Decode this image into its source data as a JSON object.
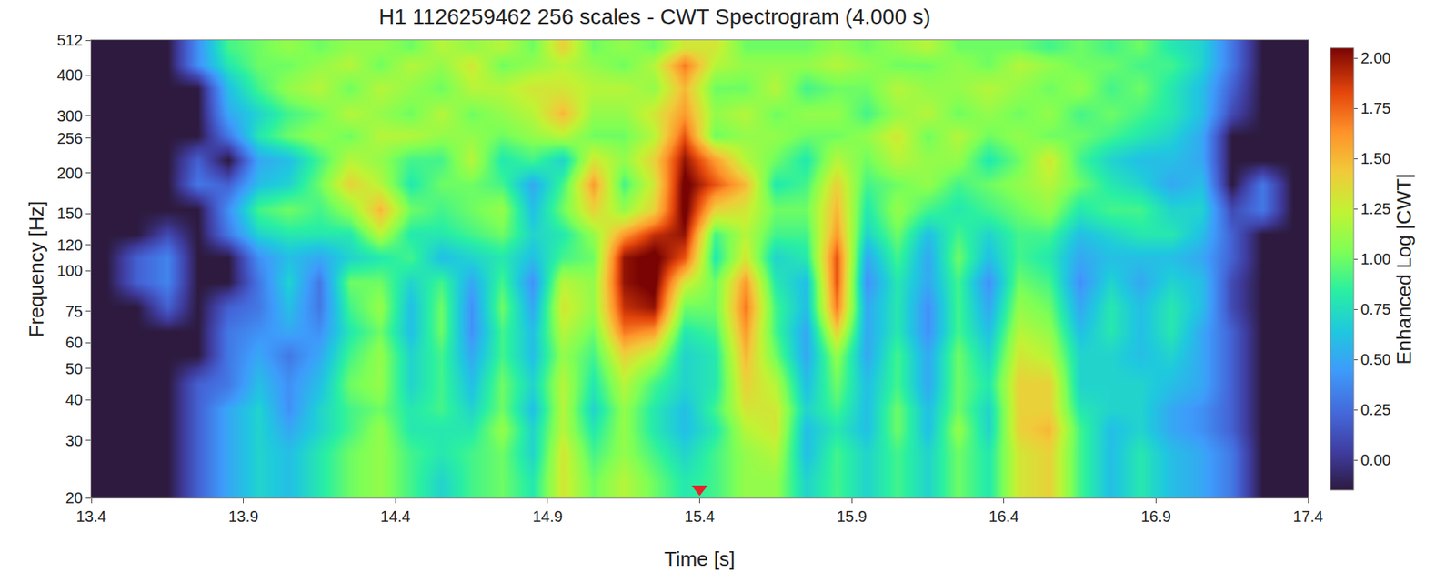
{
  "chart_data": {
    "type": "heatmap",
    "title": "H1 1126259462 256 scales - CWT Spectrogram (4.000 s)",
    "x_label": "Time [s]",
    "y_label": "Frequency [Hz]",
    "log": "y",
    "grid": false,
    "xlim": [
      13.4,
      17.4
    ],
    "xticks": [
      13.4,
      13.9,
      14.4,
      14.9,
      15.4,
      15.9,
      16.4,
      16.9,
      17.4
    ],
    "ylim": [
      20,
      512
    ],
    "yticks": [
      20,
      30,
      40,
      50,
      60,
      75,
      100,
      120,
      150,
      200,
      256,
      300,
      400,
      512
    ],
    "x": [
      13.4,
      13.5,
      13.6,
      13.7,
      13.8,
      13.9,
      14.0,
      14.1,
      14.2,
      14.3,
      14.4,
      14.5,
      14.6,
      14.7,
      14.8,
      14.9,
      15.0,
      15.1,
      15.2,
      15.3,
      15.4,
      15.5,
      15.6,
      15.7,
      15.8,
      15.9,
      16.0,
      16.1,
      16.2,
      16.3,
      16.4,
      16.5,
      16.6,
      16.7,
      16.8,
      16.9,
      17.0,
      17.1,
      17.2,
      17.3,
      17.4
    ],
    "y": [
      20,
      25,
      30,
      35,
      40,
      50,
      60,
      70,
      85,
      100,
      120,
      140,
      170,
      200,
      240,
      280,
      330,
      400,
      460,
      512
    ],
    "cells_by_time": [
      [
        -0.15,
        -0.15,
        -0.15,
        -0.15,
        -0.15,
        -0.15,
        -0.15,
        -0.15,
        -0.15,
        -0.15,
        -0.15,
        -0.15,
        -0.15,
        -0.15,
        -0.15,
        -0.15,
        -0.15,
        -0.15,
        -0.15
      ],
      [
        -0.15,
        -0.15,
        -0.15,
        -0.15,
        -0.15,
        -0.15,
        -0.15,
        -0.15,
        0.2,
        0.2,
        -0.15,
        -0.15,
        -0.15,
        -0.15,
        -0.15,
        -0.15,
        -0.15,
        -0.15,
        -0.15
      ],
      [
        -0.15,
        -0.15,
        -0.15,
        -0.15,
        -0.15,
        -0.15,
        -0.15,
        0.2,
        0.35,
        0.35,
        0.1,
        -0.15,
        -0.15,
        -0.15,
        -0.15,
        -0.15,
        -0.15,
        -0.15,
        -0.15
      ],
      [
        0.2,
        0.2,
        0.2,
        0.2,
        0.2,
        -0.15,
        -0.15,
        -0.15,
        -0.15,
        -0.15,
        -0.15,
        -0.15,
        0.3,
        0.2,
        -0.15,
        -0.15,
        -0.15,
        0.4,
        0.4
      ],
      [
        0.5,
        0.5,
        0.5,
        0.5,
        0.3,
        0.3,
        0.3,
        0.2,
        -0.15,
        -0.15,
        0.3,
        0.4,
        0.2,
        -0.15,
        0.3,
        0.5,
        0.6,
        0.8,
        0.9
      ],
      [
        0.7,
        0.7,
        0.7,
        0.7,
        0.6,
        0.5,
        0.4,
        0.3,
        0.3,
        0.4,
        0.7,
        0.9,
        0.6,
        0.5,
        0.8,
        0.7,
        0.9,
        1.0,
        1.0
      ],
      [
        0.6,
        0.6,
        0.5,
        0.4,
        0.4,
        0.3,
        0.5,
        0.6,
        0.7,
        0.6,
        0.8,
        1.0,
        0.7,
        0.6,
        1.0,
        0.9,
        1.1,
        1.0,
        1.1
      ],
      [
        0.8,
        0.8,
        0.7,
        0.7,
        0.6,
        0.5,
        0.4,
        0.3,
        0.3,
        0.5,
        0.8,
        0.9,
        1.0,
        0.9,
        1.1,
        1.0,
        1.2,
        1.1,
        1.0
      ],
      [
        1.0,
        1.0,
        0.9,
        0.9,
        1.0,
        0.9,
        0.8,
        0.9,
        1.0,
        0.7,
        0.8,
        1.1,
        1.4,
        1.2,
        1.0,
        1.2,
        1.0,
        1.2,
        1.1
      ],
      [
        1.1,
        1.1,
        1.1,
        1.0,
        1.1,
        1.1,
        1.0,
        1.1,
        1.0,
        0.8,
        1.2,
        1.5,
        1.2,
        1.1,
        1.2,
        1.1,
        1.2,
        1.0,
        1.1
      ],
      [
        0.9,
        0.9,
        0.8,
        0.8,
        0.7,
        0.7,
        0.6,
        0.6,
        0.7,
        0.9,
        0.8,
        1.0,
        0.8,
        0.9,
        1.2,
        1.0,
        1.1,
        1.2,
        1.0
      ],
      [
        0.7,
        0.8,
        0.8,
        0.9,
        0.9,
        0.9,
        1.0,
        1.0,
        0.9,
        0.6,
        0.8,
        0.9,
        1.0,
        0.9,
        1.1,
        1.2,
        1.0,
        1.1,
        1.2
      ],
      [
        0.9,
        0.9,
        0.8,
        0.7,
        0.6,
        0.5,
        0.4,
        0.4,
        0.5,
        0.7,
        0.9,
        1.0,
        1.0,
        1.2,
        1.1,
        1.0,
        1.2,
        1.3,
        1.1
      ],
      [
        1.0,
        1.0,
        1.1,
        1.0,
        1.0,
        0.9,
        0.9,
        1.0,
        0.9,
        0.8,
        1.0,
        1.1,
        0.9,
        0.8,
        1.0,
        1.1,
        1.2,
        1.0,
        1.2
      ],
      [
        0.8,
        0.7,
        0.7,
        0.6,
        0.7,
        0.6,
        0.6,
        0.5,
        0.4,
        0.6,
        0.7,
        0.6,
        0.5,
        0.9,
        1.1,
        1.2,
        1.3,
        1.1,
        1.0
      ],
      [
        1.3,
        1.3,
        1.2,
        1.2,
        1.2,
        1.1,
        1.2,
        1.3,
        1.2,
        0.9,
        0.8,
        1.0,
        0.9,
        0.7,
        1.2,
        1.5,
        1.3,
        1.2,
        1.4
      ],
      [
        1.0,
        0.9,
        0.8,
        0.7,
        0.8,
        0.9,
        1.0,
        1.1,
        1.1,
        1.0,
        1.1,
        1.4,
        1.6,
        1.3,
        1.0,
        1.1,
        1.2,
        1.1,
        1.0
      ],
      [
        1.2,
        1.1,
        1.1,
        1.1,
        1.2,
        1.4,
        1.7,
        1.9,
        2.0,
        2.0,
        1.6,
        1.1,
        0.9,
        1.1,
        1.0,
        1.1,
        1.2,
        1.0,
        1.1
      ],
      [
        1.0,
        0.9,
        0.8,
        0.8,
        0.9,
        1.2,
        1.6,
        2.0,
        2.1,
        2.1,
        1.9,
        1.4,
        1.3,
        1.4,
        1.2,
        1.3,
        1.1,
        1.2,
        1.0
      ],
      [
        0.8,
        0.7,
        0.6,
        0.6,
        0.7,
        0.7,
        0.8,
        1.0,
        1.3,
        1.8,
        2.0,
        2.1,
        2.1,
        2.0,
        1.8,
        1.6,
        1.5,
        1.7,
        1.3
      ],
      [
        0.9,
        0.9,
        0.8,
        0.9,
        0.8,
        0.8,
        0.9,
        1.0,
        1.0,
        0.8,
        0.9,
        1.4,
        1.8,
        1.6,
        1.0,
        1.1,
        1.0,
        1.2,
        1.3
      ],
      [
        1.1,
        1.1,
        1.2,
        1.3,
        1.4,
        1.5,
        1.6,
        1.7,
        1.6,
        1.3,
        1.2,
        1.3,
        1.5,
        1.2,
        1.1,
        1.2,
        1.0,
        1.1,
        1.0
      ],
      [
        1.1,
        1.2,
        1.3,
        1.3,
        1.2,
        1.0,
        0.9,
        0.9,
        0.8,
        0.7,
        0.9,
        1.0,
        0.8,
        1.0,
        1.1,
        1.0,
        1.2,
        1.1,
        1.0
      ],
      [
        0.7,
        0.6,
        0.6,
        0.7,
        0.6,
        0.5,
        0.5,
        0.6,
        0.6,
        0.8,
        0.9,
        1.0,
        0.9,
        0.8,
        1.0,
        1.1,
        0.9,
        1.1,
        1.0
      ],
      [
        0.9,
        0.9,
        0.8,
        0.9,
        1.0,
        1.1,
        1.4,
        1.7,
        1.8,
        1.8,
        1.6,
        1.5,
        1.4,
        1.2,
        1.0,
        1.1,
        1.0,
        1.2,
        1.1
      ],
      [
        0.7,
        0.7,
        0.6,
        0.6,
        0.6,
        0.5,
        0.5,
        0.5,
        0.4,
        0.5,
        0.7,
        0.8,
        0.9,
        1.0,
        1.1,
        0.9,
        1.0,
        1.1,
        1.0
      ],
      [
        0.9,
        0.9,
        1.0,
        1.0,
        0.9,
        0.9,
        0.8,
        0.8,
        0.8,
        0.9,
        1.0,
        1.1,
        1.0,
        1.2,
        1.3,
        1.1,
        1.2,
        1.0,
        1.1
      ],
      [
        0.7,
        0.7,
        0.6,
        0.6,
        0.5,
        0.5,
        0.4,
        0.4,
        0.5,
        0.5,
        0.6,
        0.9,
        1.1,
        1.1,
        1.0,
        1.2,
        1.1,
        1.0,
        1.2
      ],
      [
        1.0,
        1.0,
        1.1,
        1.0,
        1.0,
        1.0,
        0.9,
        0.9,
        0.9,
        1.0,
        0.9,
        0.8,
        0.9,
        1.1,
        1.2,
        1.0,
        1.1,
        1.1,
        1.0
      ],
      [
        0.8,
        0.8,
        0.7,
        0.7,
        0.8,
        0.7,
        0.6,
        0.5,
        0.4,
        0.6,
        0.7,
        0.9,
        1.0,
        0.8,
        1.0,
        1.1,
        1.2,
        1.0,
        1.0
      ],
      [
        1.3,
        1.3,
        1.4,
        1.4,
        1.4,
        1.3,
        1.2,
        1.1,
        1.0,
        0.9,
        0.9,
        1.0,
        1.1,
        1.0,
        1.1,
        1.0,
        1.1,
        1.2,
        1.0
      ],
      [
        1.4,
        1.4,
        1.5,
        1.4,
        1.4,
        1.2,
        1.1,
        1.0,
        0.9,
        0.8,
        0.9,
        1.1,
        1.2,
        1.3,
        1.0,
        1.1,
        1.0,
        1.1,
        0.9
      ],
      [
        0.9,
        0.9,
        0.9,
        0.8,
        0.7,
        0.7,
        0.6,
        0.5,
        0.4,
        0.5,
        0.6,
        0.8,
        1.0,
        0.9,
        1.0,
        0.9,
        1.1,
        1.0,
        1.0
      ],
      [
        0.6,
        0.6,
        0.6,
        0.7,
        0.7,
        0.7,
        0.8,
        0.8,
        0.7,
        0.6,
        0.7,
        0.9,
        0.8,
        0.7,
        0.9,
        1.0,
        0.9,
        1.0,
        0.9
      ],
      [
        0.8,
        0.8,
        0.7,
        0.7,
        0.7,
        0.6,
        0.6,
        0.6,
        0.5,
        0.6,
        0.8,
        0.9,
        0.7,
        0.6,
        0.8,
        0.9,
        1.0,
        0.9,
        1.0
      ],
      [
        0.6,
        0.6,
        0.5,
        0.5,
        0.6,
        0.7,
        0.8,
        0.8,
        0.7,
        0.6,
        0.8,
        0.7,
        0.5,
        0.6,
        0.7,
        0.8,
        0.8,
        0.9,
        0.8
      ],
      [
        0.5,
        0.5,
        0.4,
        0.4,
        0.5,
        0.5,
        0.5,
        0.6,
        0.6,
        0.5,
        0.6,
        0.7,
        0.6,
        0.5,
        0.5,
        0.6,
        0.6,
        0.7,
        0.7
      ],
      [
        0.3,
        0.3,
        0.2,
        0.2,
        0.2,
        0.2,
        0.2,
        0.1,
        0.1,
        0.2,
        0.2,
        0.1,
        -0.15,
        -0.15,
        -0.15,
        0.1,
        0.2,
        0.3,
        0.3
      ],
      [
        -0.15,
        -0.15,
        -0.15,
        -0.15,
        -0.15,
        -0.15,
        -0.15,
        -0.15,
        -0.15,
        -0.15,
        -0.15,
        0.3,
        0.3,
        -0.15,
        -0.15,
        -0.15,
        -0.15,
        -0.15,
        -0.15
      ],
      [
        -0.15,
        -0.15,
        -0.15,
        -0.15,
        -0.15,
        -0.15,
        -0.15,
        -0.15,
        -0.15,
        -0.15,
        -0.15,
        -0.15,
        -0.15,
        -0.15,
        -0.15,
        -0.15,
        -0.15,
        -0.15,
        -0.15
      ]
    ],
    "colorbar_title": "Enhanced Log |CWT|",
    "zlim": [
      -0.15,
      2.05
    ],
    "zticks": [
      {
        "value": 0,
        "label": "0.00"
      },
      {
        "value": 0.25,
        "label": "0.25"
      },
      {
        "value": 0.5,
        "label": "0.50"
      },
      {
        "value": 0.75,
        "label": "0.75"
      },
      {
        "value": 1,
        "label": "1.00"
      },
      {
        "value": 1.25,
        "label": "1.25"
      },
      {
        "value": 1.5,
        "label": "1.50"
      },
      {
        "value": 1.75,
        "label": "1.75"
      },
      {
        "value": 2,
        "label": "2.00"
      }
    ],
    "series": [
      {
        "type": "scatter",
        "x": [
          15.4
        ],
        "values": [
          21.3
        ],
        "color": "#e3242b",
        "marker": "triangle-down"
      }
    ]
  }
}
